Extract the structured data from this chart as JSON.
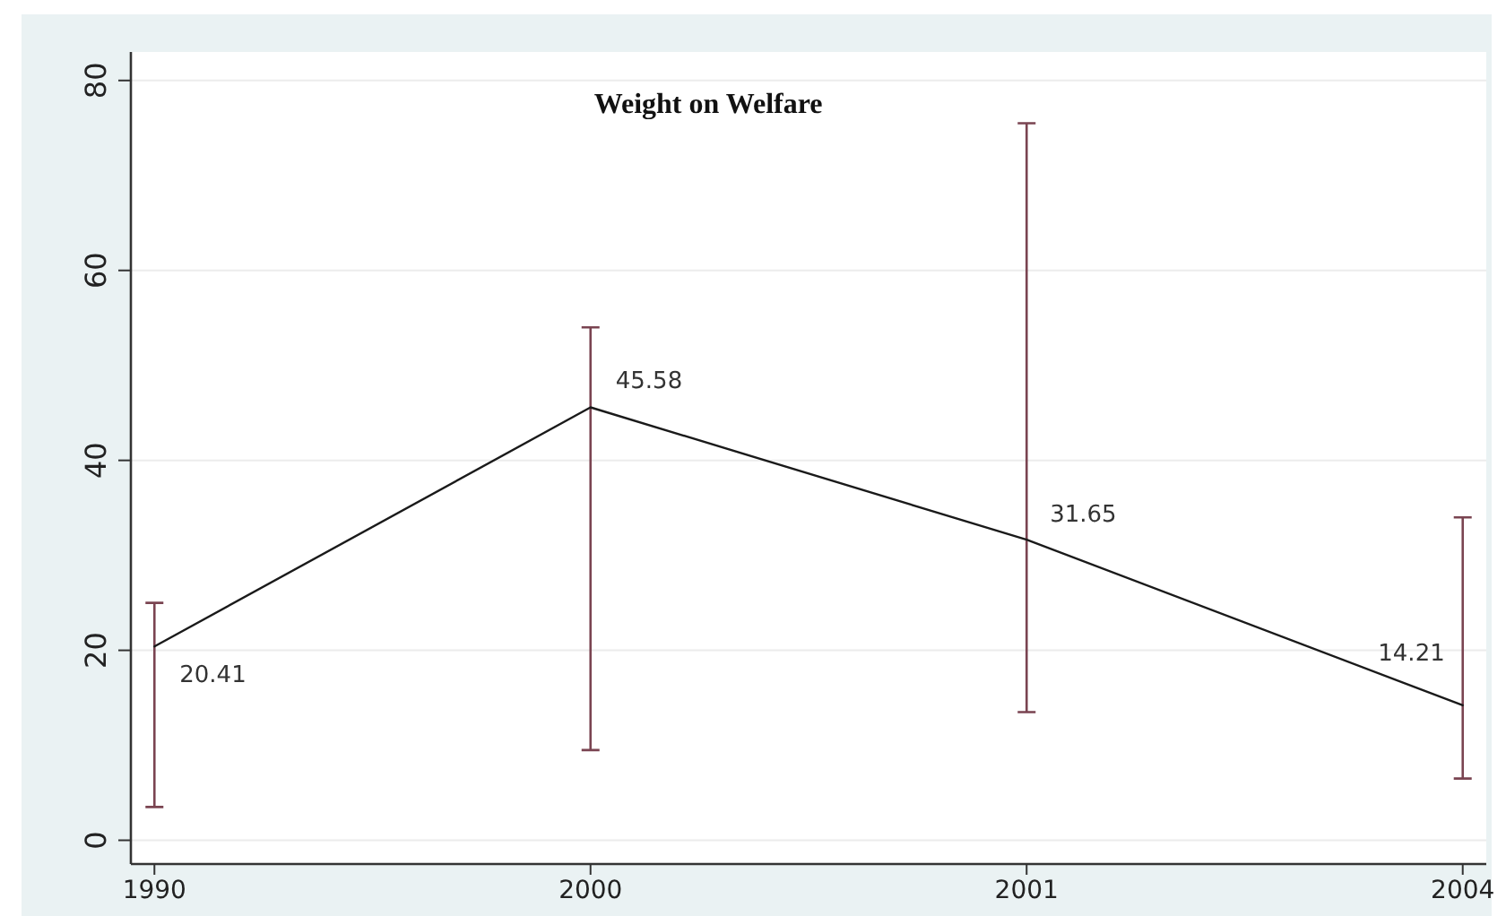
{
  "chart_data": {
    "type": "line",
    "title": "Weight on Welfare",
    "categories": [
      "1990",
      "2000",
      "2001",
      "2004"
    ],
    "series": [
      {
        "color": "#1a1a1a",
        "values": [
          20.41,
          45.58,
          31.65,
          14.21
        ],
        "errors": [
          [
            3.5,
            25
          ],
          [
            9.5,
            54
          ],
          [
            13.5,
            75.5
          ],
          [
            6.5,
            34
          ]
        ]
      }
    ],
    "ylim": [
      -2.5,
      83
    ],
    "yticks": [
      0,
      20,
      40,
      60,
      80
    ],
    "grid": "y",
    "marker": "none",
    "data_labels": true
  }
}
